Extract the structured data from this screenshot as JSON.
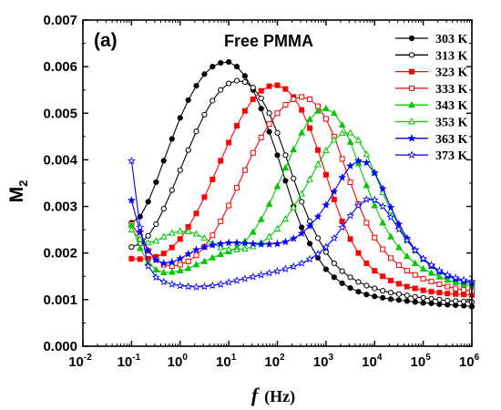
{
  "chart_data": {
    "type": "line",
    "panel_label": "(a)",
    "title": "Free PMMA",
    "xlabel_symbol": "f",
    "xlabel_unit": "(Hz)",
    "ylabel_main": "M",
    "ylabel_sub": "2",
    "x_scale": "log",
    "xlim": [
      0.01,
      1000000
    ],
    "x_tick_base": "10",
    "x_tick_exponents": [
      "-2",
      "-1",
      "0",
      "1",
      "2",
      "3",
      "4",
      "5",
      "6"
    ],
    "ylim": [
      0,
      0.007
    ],
    "y_ticks": [
      "0.000",
      "0.001",
      "0.002",
      "0.003",
      "0.004",
      "0.005",
      "0.006",
      "0.007"
    ],
    "legend_position": "top-right",
    "x": [
      0.1,
      0.15,
      0.22,
      0.32,
      0.46,
      0.68,
      1,
      1.47,
      2.15,
      3.16,
      4.64,
      6.81,
      10,
      14.7,
      21.5,
      31.6,
      46.4,
      68.1,
      100,
      147,
      215,
      316,
      464,
      681,
      1000,
      1470,
      2150,
      3160,
      4640,
      6810,
      10000,
      14700,
      21500,
      31600,
      46400,
      68100,
      100000,
      147000,
      215000,
      316000,
      464000,
      681000,
      1000000
    ],
    "series": [
      {
        "name": "303 K",
        "color": "#000000",
        "marker": "circle",
        "filled": true,
        "values": [
          0.00265,
          0.00278,
          0.0031,
          0.00352,
          0.00398,
          0.00445,
          0.0049,
          0.00528,
          0.00559,
          0.00584,
          0.006,
          0.00608,
          0.0061,
          0.006,
          0.0058,
          0.0055,
          0.0051,
          0.0046,
          0.0041,
          0.00355,
          0.003,
          0.00255,
          0.0022,
          0.0019,
          0.00165,
          0.00148,
          0.00135,
          0.00125,
          0.00117,
          0.00111,
          0.00107,
          0.00104,
          0.00101,
          0.00099,
          0.00097,
          0.00095,
          0.00093,
          0.00092,
          0.0009,
          0.00089,
          0.00088,
          0.00087,
          0.00085
        ]
      },
      {
        "name": "313 K",
        "color": "#000000",
        "marker": "circle",
        "filled": false,
        "values": [
          0.00213,
          0.0022,
          0.00237,
          0.00262,
          0.00295,
          0.00335,
          0.00378,
          0.00421,
          0.00461,
          0.00497,
          0.00527,
          0.0055,
          0.00564,
          0.0057,
          0.00567,
          0.00555,
          0.00532,
          0.005,
          0.00458,
          0.0041,
          0.0036,
          0.0031,
          0.00268,
          0.00232,
          0.00202,
          0.00178,
          0.00161,
          0.00148,
          0.00138,
          0.0013,
          0.00124,
          0.00119,
          0.00115,
          0.00112,
          0.00109,
          0.00106,
          0.00104,
          0.00102,
          0.001,
          0.00098,
          0.00097,
          0.00096,
          0.00095
        ]
      },
      {
        "name": "323 K",
        "color": "#ff0000",
        "marker": "square",
        "filled": true,
        "values": [
          0.00188,
          0.00187,
          0.00188,
          0.00192,
          0.00199,
          0.00212,
          0.0023,
          0.00256,
          0.00285,
          0.0032,
          0.00358,
          0.00398,
          0.00437,
          0.00473,
          0.00505,
          0.0053,
          0.00548,
          0.00558,
          0.0056,
          0.00552,
          0.00535,
          0.00507,
          0.00468,
          0.00421,
          0.00368,
          0.00315,
          0.00268,
          0.0023,
          0.002,
          0.00178,
          0.00162,
          0.0015,
          0.00141,
          0.00134,
          0.00128,
          0.00124,
          0.0012,
          0.00117,
          0.00115,
          0.00113,
          0.00112,
          0.00111,
          0.0011
        ]
      },
      {
        "name": "333 K",
        "color": "#ff0000",
        "marker": "square",
        "filled": false,
        "values": [
          0.00262,
          0.00235,
          0.00205,
          0.00186,
          0.00175,
          0.00172,
          0.00175,
          0.00182,
          0.00195,
          0.00213,
          0.00238,
          0.00268,
          0.00302,
          0.0034,
          0.00378,
          0.00415,
          0.00448,
          0.00477,
          0.005,
          0.00518,
          0.0053,
          0.00535,
          0.0053,
          0.00515,
          0.00488,
          0.0045,
          0.00402,
          0.00352,
          0.00305,
          0.00265,
          0.00233,
          0.00208,
          0.00189,
          0.00174,
          0.00162,
          0.00153,
          0.00145,
          0.00139,
          0.00133,
          0.00128,
          0.00124,
          0.00121,
          0.00118
        ]
      },
      {
        "name": "343 K",
        "color": "#00c800",
        "marker": "triangle",
        "filled": true,
        "values": [
          0.0026,
          0.0021,
          0.0018,
          0.00164,
          0.00158,
          0.00159,
          0.00162,
          0.00167,
          0.00175,
          0.00182,
          0.0019,
          0.00197,
          0.00203,
          0.00212,
          0.00225,
          0.00245,
          0.00272,
          0.00305,
          0.00343,
          0.00383,
          0.00422,
          0.00458,
          0.00487,
          0.00505,
          0.0051,
          0.005,
          0.00475,
          0.00438,
          0.00392,
          0.00345,
          0.00302,
          0.00265,
          0.00235,
          0.00212,
          0.00193,
          0.00178,
          0.00166,
          0.00157,
          0.00149,
          0.00142,
          0.00137,
          0.00133,
          0.0013
        ]
      },
      {
        "name": "353 K",
        "color": "#00c800",
        "marker": "triangle",
        "filled": false,
        "values": [
          0.0025,
          0.0023,
          0.00222,
          0.00226,
          0.00235,
          0.00243,
          0.00247,
          0.00246,
          0.00241,
          0.00232,
          0.00221,
          0.00212,
          0.00208,
          0.00207,
          0.00209,
          0.00214,
          0.00222,
          0.00235,
          0.00252,
          0.00273,
          0.00298,
          0.00327,
          0.00358,
          0.0039,
          0.0042,
          0.00443,
          0.00457,
          0.00458,
          0.00442,
          0.00412,
          0.00372,
          0.0033,
          0.00291,
          0.00257,
          0.00228,
          0.00205,
          0.00187,
          0.00172,
          0.0016,
          0.00151,
          0.00144,
          0.00139,
          0.00135
        ]
      },
      {
        "name": "363 K",
        "color": "#0000ff",
        "marker": "star",
        "filled": true,
        "values": [
          0.00313,
          0.00245,
          0.00205,
          0.00185,
          0.00178,
          0.0018,
          0.00188,
          0.00198,
          0.00207,
          0.00213,
          0.00217,
          0.0022,
          0.00222,
          0.00222,
          0.00221,
          0.0022,
          0.00219,
          0.00219,
          0.0022,
          0.00224,
          0.00231,
          0.00242,
          0.00258,
          0.00278,
          0.00303,
          0.00332,
          0.00362,
          0.00387,
          0.00398,
          0.00394,
          0.00372,
          0.00338,
          0.00298,
          0.00262,
          0.00232,
          0.00207,
          0.00187,
          0.00172,
          0.0016,
          0.00151,
          0.00144,
          0.00139,
          0.00135
        ]
      },
      {
        "name": "373 K",
        "color": "#0000ff",
        "marker": "star",
        "filled": false,
        "values": [
          0.00398,
          0.00255,
          0.00172,
          0.00148,
          0.00138,
          0.00133,
          0.0013,
          0.00128,
          0.00127,
          0.00128,
          0.0013,
          0.00133,
          0.00137,
          0.00141,
          0.00145,
          0.00149,
          0.00153,
          0.00157,
          0.00161,
          0.00166,
          0.00171,
          0.00178,
          0.00187,
          0.00198,
          0.00213,
          0.00232,
          0.00255,
          0.0028,
          0.00302,
          0.00315,
          0.00314,
          0.003,
          0.00277,
          0.00251,
          0.00227,
          0.00206,
          0.00188,
          0.00174,
          0.00162,
          0.00153,
          0.00147,
          0.00142,
          0.00139
        ]
      }
    ]
  }
}
